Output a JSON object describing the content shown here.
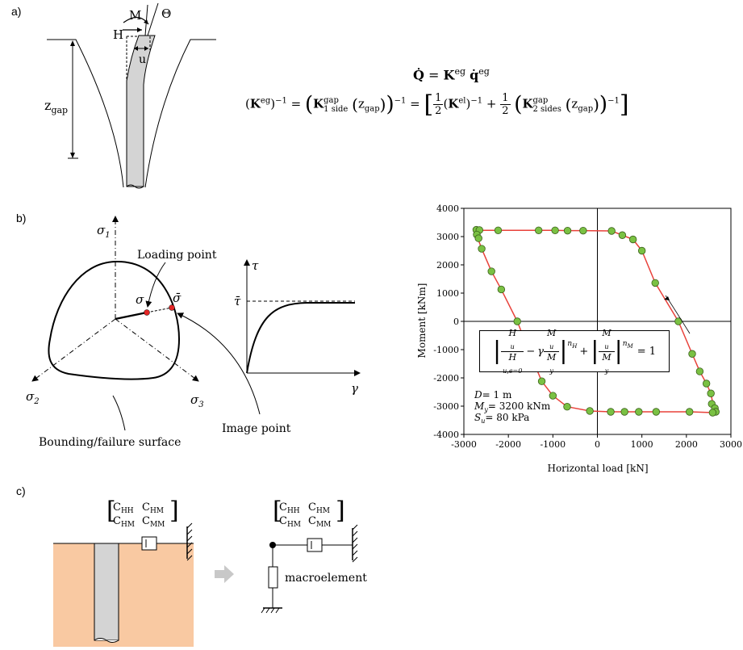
{
  "panels": {
    "a": "a)",
    "b": "b)",
    "c": "c)"
  },
  "panel_a": {
    "moment": "M",
    "rotation": "Θ",
    "horizontal": "H",
    "displacement": "u",
    "depth": "z",
    "depth_sub": "gap"
  },
  "equations": {
    "line1": {
      "lhs": "Q̇",
      "eq": "=",
      "K": "K",
      "K_sup": "eg",
      "q": "q̇",
      "q_sup": "eg"
    },
    "line2": {
      "K": "K",
      "K_sup": "eg",
      "inv": "−1",
      "gap": "gap",
      "one_side": "1 side",
      "z": "z",
      "z_sub": "gap",
      "half_num": "1",
      "half_den": "2",
      "el": "el",
      "two_sides": "2 sides",
      "plus": "+"
    }
  },
  "panel_b": {
    "sigma1": "σ",
    "sigma1_sub": "1",
    "sigma2": "σ",
    "sigma2_sub": "2",
    "sigma3": "σ",
    "sigma3_sub": "3",
    "loading_point": "Loading point",
    "sigma": "σ",
    "sigma_bar": "σ̄",
    "image_point": "Image point",
    "surface": "Bounding/failure surface",
    "tau": "τ",
    "tau_bar": "τ̄",
    "gamma": "γ"
  },
  "chart_data": {
    "type": "scatter",
    "xlabel": "Horizontal load [kN]",
    "ylabel": "Moment [kNm]",
    "xlim": [
      -3000,
      3000
    ],
    "ylim": [
      -4000,
      4000
    ],
    "xticks": [
      "-3000",
      "-2000",
      "-1000",
      "0",
      "1000",
      "2000",
      "3000"
    ],
    "yticks": [
      "4000",
      "3000",
      "2000",
      "1000",
      "0",
      "-1000",
      "-2000",
      "-3000",
      "-4000"
    ],
    "series": [
      {
        "marker_color": "#7ac143",
        "line_color": "#e8413a",
        "points": [
          [
            -2720,
            3240
          ],
          [
            -2650,
            3230
          ],
          [
            -2710,
            3070
          ],
          [
            -2670,
            2940
          ],
          [
            -2600,
            2570
          ],
          [
            -2380,
            1770
          ],
          [
            -2160,
            1130
          ],
          [
            -1800,
            0
          ],
          [
            -2230,
            3220
          ],
          [
            -1320,
            3220
          ],
          [
            -950,
            3220
          ],
          [
            -670,
            3210
          ],
          [
            -320,
            3210
          ],
          [
            320,
            3200
          ],
          [
            560,
            3050
          ],
          [
            800,
            2900
          ],
          [
            1000,
            2500
          ],
          [
            1300,
            1360
          ],
          [
            1820,
            0
          ],
          [
            2130,
            -1150
          ],
          [
            2300,
            -1770
          ],
          [
            2450,
            -2200
          ],
          [
            2550,
            -2550
          ],
          [
            2570,
            -2920
          ],
          [
            2640,
            -3070
          ],
          [
            2660,
            -3200
          ],
          [
            2590,
            -3230
          ],
          [
            2070,
            -3200
          ],
          [
            1320,
            -3200
          ],
          [
            930,
            -3200
          ],
          [
            610,
            -3200
          ],
          [
            300,
            -3200
          ],
          [
            -170,
            -3170
          ],
          [
            -680,
            -3020
          ],
          [
            -1000,
            -2630
          ],
          [
            -1250,
            -2120
          ],
          [
            -1550,
            -1000
          ]
        ]
      }
    ],
    "annotations": {
      "D": "D",
      "D_val": "= 1 m",
      "My": "M",
      "My_sub": "y",
      "My_val": "= 3200 kNm",
      "Su": "S",
      "Su_sub": "u",
      "Su_val": "= 80 kPa"
    },
    "formula": {
      "Hu": "H",
      "Hu_sub": "u",
      "Hu0_sub": "u,e=0",
      "gamma": "γ",
      "Mu": "M",
      "Mu_sub": "u",
      "My": "M",
      "My_sub": "y",
      "nH": "n",
      "nH_sub": "H",
      "nM": "n",
      "nM_sub": "M",
      "minus": "−",
      "plus": "+",
      "equals": "= 1"
    }
  },
  "panel_c": {
    "matrix": [
      "C",
      "HH",
      "C",
      "HM",
      "C",
      "HM",
      "C",
      "MM"
    ],
    "macroelement": "macroelement"
  },
  "colors": {
    "soil": "#f9c9a2",
    "pile": "#d4d4d4",
    "marker": "#7ac143",
    "curve": "#e8413a",
    "arrow": "#c8c8c8",
    "point": "#e32626"
  }
}
